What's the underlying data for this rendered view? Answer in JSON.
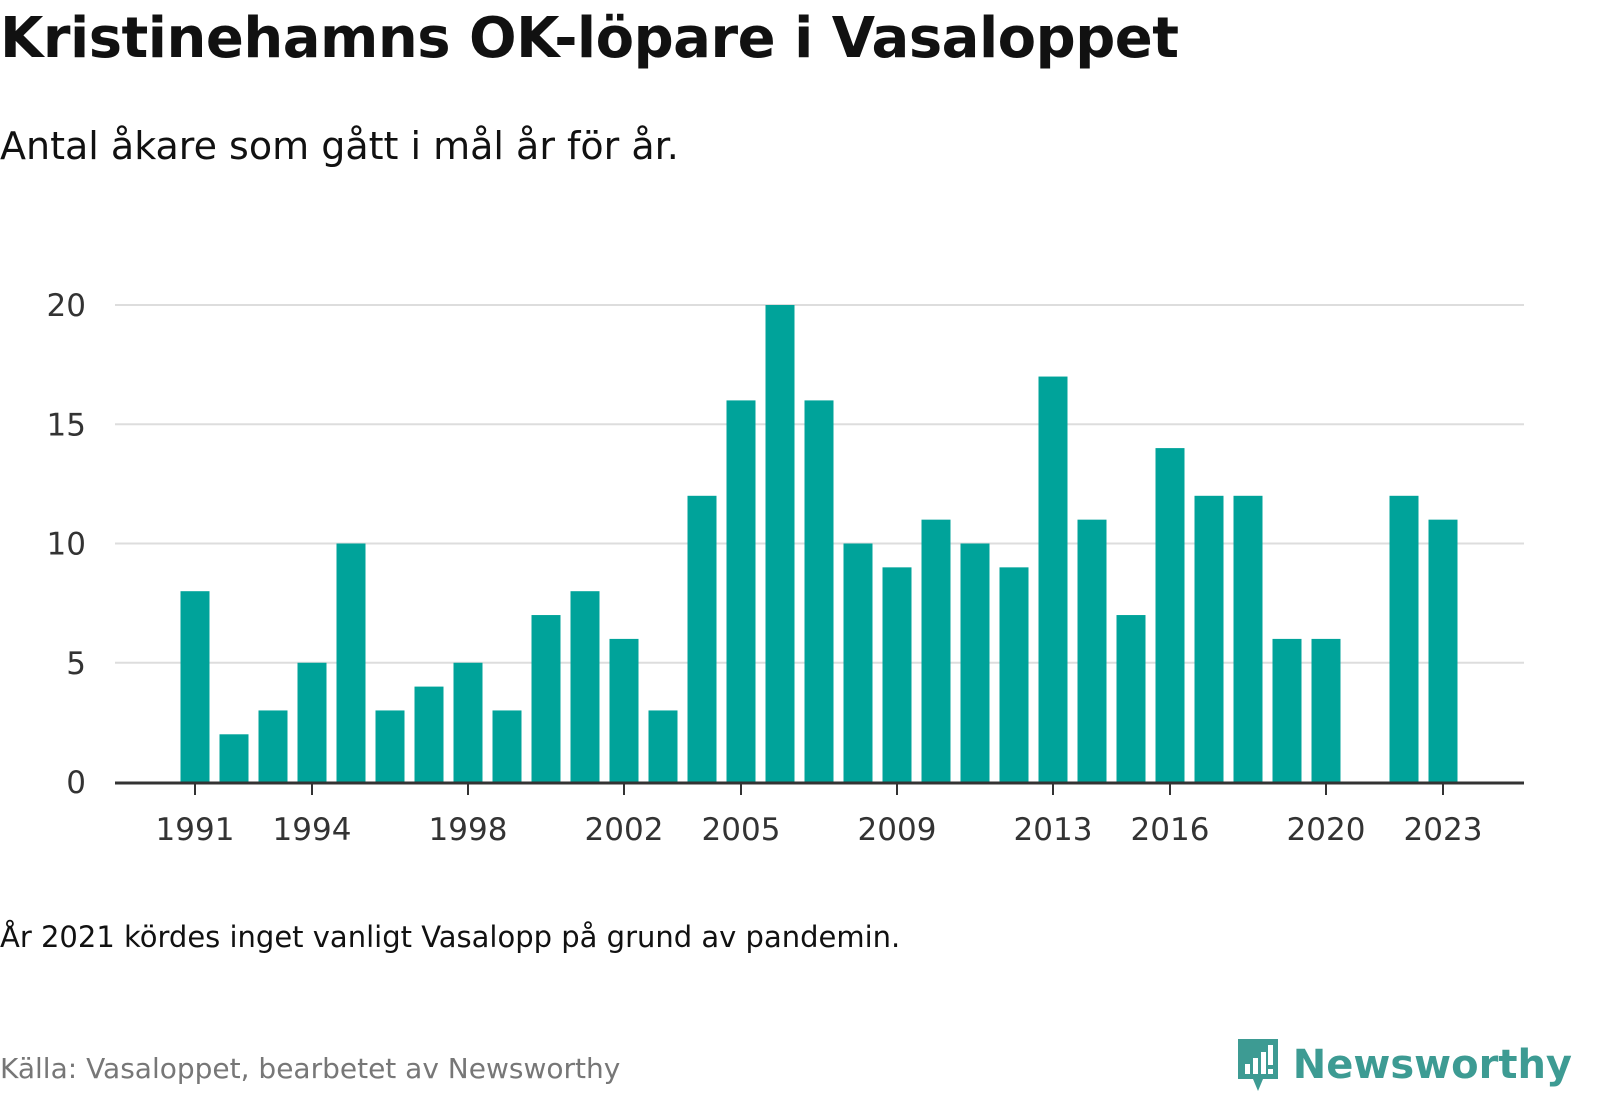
{
  "header": {
    "title": "Kristinehamns OK-löpare i Vasaloppet",
    "subtitle": "Antal åkare som gått i mål år för år."
  },
  "footer": {
    "note": "År 2021 kördes inget vanligt Vasalopp på grund av pandemin.",
    "source": "Källa: Vasaloppet, bearbetet av Newsworthy",
    "brand": "Newsworthy"
  },
  "colors": {
    "bar": "#00a39a",
    "brand": "#3d9b93",
    "grid": "#dddddd",
    "axis": "#333333"
  },
  "chart_data": {
    "type": "bar",
    "title": "Kristinehamns OK-löpare i Vasaloppet",
    "subtitle": "Antal åkare som gått i mål år för år.",
    "xlabel": "",
    "ylabel": "",
    "ylim": [
      0,
      20
    ],
    "yticks": [
      0,
      5,
      10,
      15,
      20
    ],
    "xticks": [
      1991,
      1994,
      1998,
      2002,
      2005,
      2009,
      2013,
      2016,
      2020,
      2023
    ],
    "grid": true,
    "categories": [
      1991,
      1992,
      1993,
      1994,
      1995,
      1996,
      1997,
      1998,
      1999,
      2000,
      2001,
      2002,
      2003,
      2004,
      2005,
      2006,
      2007,
      2008,
      2009,
      2010,
      2011,
      2012,
      2013,
      2014,
      2015,
      2016,
      2017,
      2018,
      2019,
      2020,
      2021,
      2022,
      2023
    ],
    "values": [
      8,
      2,
      3,
      5,
      10,
      3,
      4,
      5,
      3,
      7,
      8,
      6,
      3,
      12,
      16,
      20,
      16,
      10,
      9,
      11,
      10,
      9,
      17,
      11,
      7,
      14,
      12,
      12,
      6,
      6,
      null,
      12,
      11
    ]
  }
}
